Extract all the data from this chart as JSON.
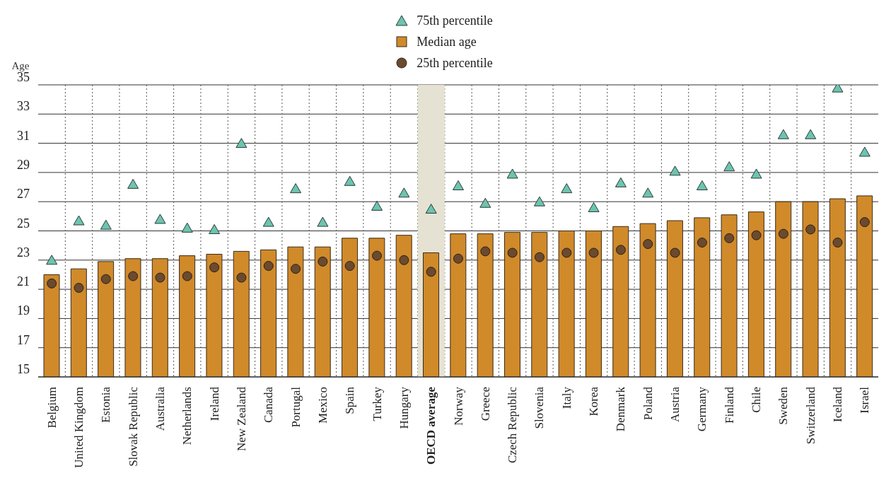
{
  "chart_data": {
    "type": "bar",
    "ylabel": "Age",
    "categories": [
      "Belgium",
      "United Kingdom",
      "Estonia",
      "Slovak Republic",
      "Australia",
      "Netherlands",
      "Ireland",
      "New Zealand",
      "Canada",
      "Portugal",
      "Mexico",
      "Spain",
      "Turkey",
      "Hungary",
      "OECD average",
      "Norway",
      "Greece",
      "Czech Republic",
      "Slovenia",
      "Italy",
      "Korea",
      "Denmark",
      "Poland",
      "Austria",
      "Germany",
      "Finland",
      "Chile",
      "Sweden",
      "Switzerland",
      "Iceland",
      "Israel"
    ],
    "series": [
      {
        "name": "75th percentile",
        "type": "scatter",
        "marker": "triangle",
        "color": "#6cc4b0",
        "values": [
          23.0,
          25.7,
          25.4,
          28.2,
          25.8,
          25.2,
          25.1,
          31.0,
          25.6,
          27.9,
          25.6,
          28.4,
          26.7,
          27.6,
          26.5,
          28.1,
          26.9,
          28.9,
          27.0,
          27.9,
          26.6,
          28.3,
          27.6,
          29.1,
          28.1,
          29.4,
          28.9,
          31.6,
          31.6,
          34.8,
          30.4
        ]
      },
      {
        "name": "Median age",
        "marker": "square",
        "color": "#d08a2a",
        "values": [
          22.0,
          22.4,
          22.9,
          23.1,
          23.1,
          23.3,
          23.4,
          23.6,
          23.7,
          23.9,
          23.9,
          24.5,
          24.5,
          24.7,
          23.5,
          24.8,
          24.8,
          24.9,
          24.9,
          25.0,
          25.0,
          25.3,
          25.5,
          25.7,
          25.9,
          26.1,
          26.3,
          27.0,
          27.0,
          27.2,
          27.4
        ]
      },
      {
        "name": "25th percentile",
        "type": "scatter",
        "marker": "circle",
        "color": "#6b4a2e",
        "values": [
          21.4,
          21.1,
          21.7,
          21.9,
          21.8,
          21.9,
          22.5,
          21.8,
          22.6,
          22.4,
          22.9,
          22.6,
          23.3,
          23.0,
          22.2,
          23.1,
          23.6,
          23.5,
          23.2,
          23.5,
          23.5,
          23.7,
          24.1,
          23.5,
          24.2,
          24.5,
          24.7,
          24.8,
          25.1,
          24.2,
          25.6
        ]
      }
    ],
    "ylim": [
      15,
      35
    ],
    "yticks": [
      15,
      17,
      19,
      21,
      23,
      25,
      27,
      29,
      31,
      33,
      35
    ],
    "grid": true,
    "legend": "top",
    "bands": [
      {
        "axis": "x",
        "from": "OECD average",
        "to": "OECD average",
        "color": "#e6e2d3"
      }
    ]
  }
}
